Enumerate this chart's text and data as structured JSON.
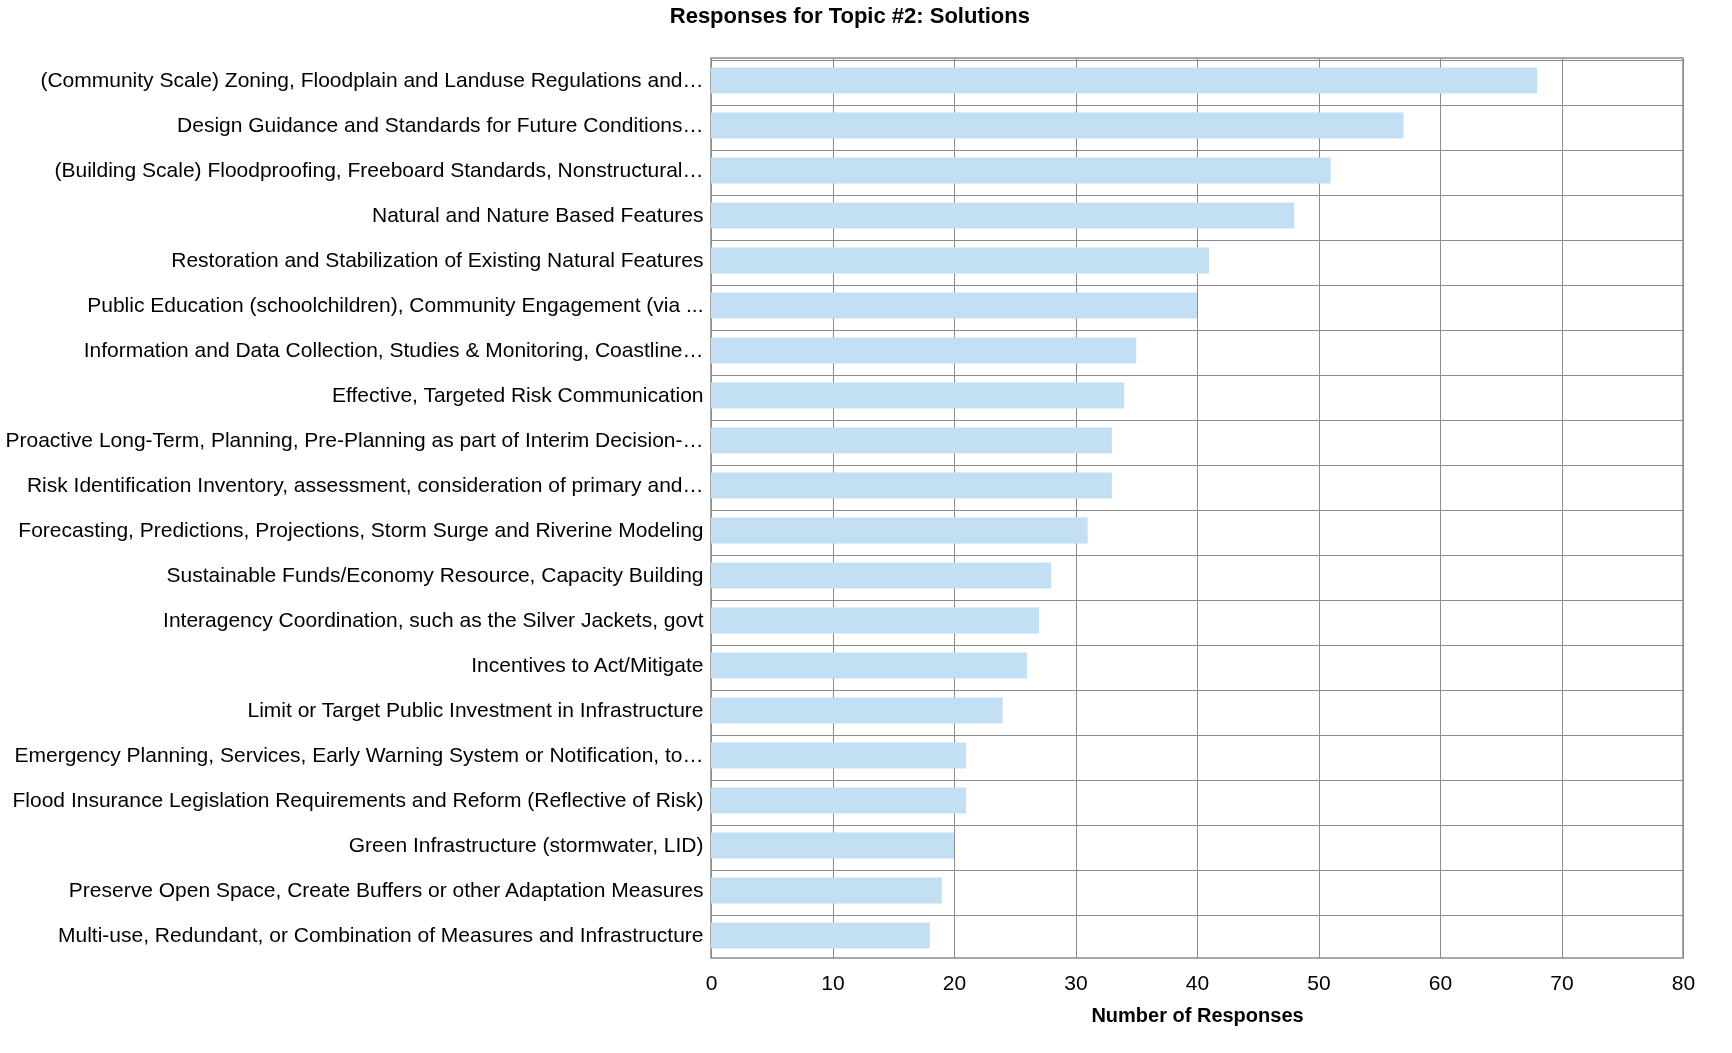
{
  "chart_data": {
    "type": "bar",
    "orientation": "horizontal",
    "title": "Responses for Topic #2: Solutions",
    "xlabel": "Number of Responses",
    "categories": [
      "(Community Scale) Zoning, Floodplain and Landuse Regulations and…",
      "Design Guidance and Standards for Future Conditions…",
      "(Building Scale) Floodproofing, Freeboard Standards, Nonstructural…",
      "Natural and Nature Based Features",
      "Restoration and Stabilization of Existing Natural Features",
      "Public Education (schoolchildren), Community Engagement (via ...",
      "Information and Data Collection, Studies & Monitoring, Coastline…",
      "Effective, Targeted Risk Communication",
      "Proactive Long-Term, Planning, Pre-Planning as part of Interim Decision-…",
      "Risk Identification Inventory, assessment, consideration of primary and…",
      "Forecasting, Predictions, Projections, Storm Surge and Riverine Modeling",
      "Sustainable Funds/Economy Resource, Capacity Building",
      "Interagency Coordination, such as the Silver Jackets, govt",
      "Incentives to Act/Mitigate",
      "Limit or Target Public Investment in Infrastructure",
      "Emergency Planning, Services, Early Warning System or Notification, to…",
      "Flood Insurance Legislation Requirements and Reform (Reflective of Risk)",
      "Green Infrastructure (stormwater, LID)",
      "Preserve Open Space, Create Buffers or other Adaptation Measures",
      "Multi-use, Redundant, or Combination of Measures and Infrastructure"
    ],
    "values": [
      68,
      57,
      51,
      48,
      41,
      40,
      35,
      34,
      33,
      33,
      31,
      28,
      27,
      26,
      24,
      21,
      21,
      20,
      19,
      18
    ],
    "color": "#c3dff4",
    "xlim": [
      0,
      80
    ],
    "xticks": [
      0,
      10,
      20,
      30,
      40,
      50,
      60,
      70,
      80
    ],
    "grid": true
  }
}
